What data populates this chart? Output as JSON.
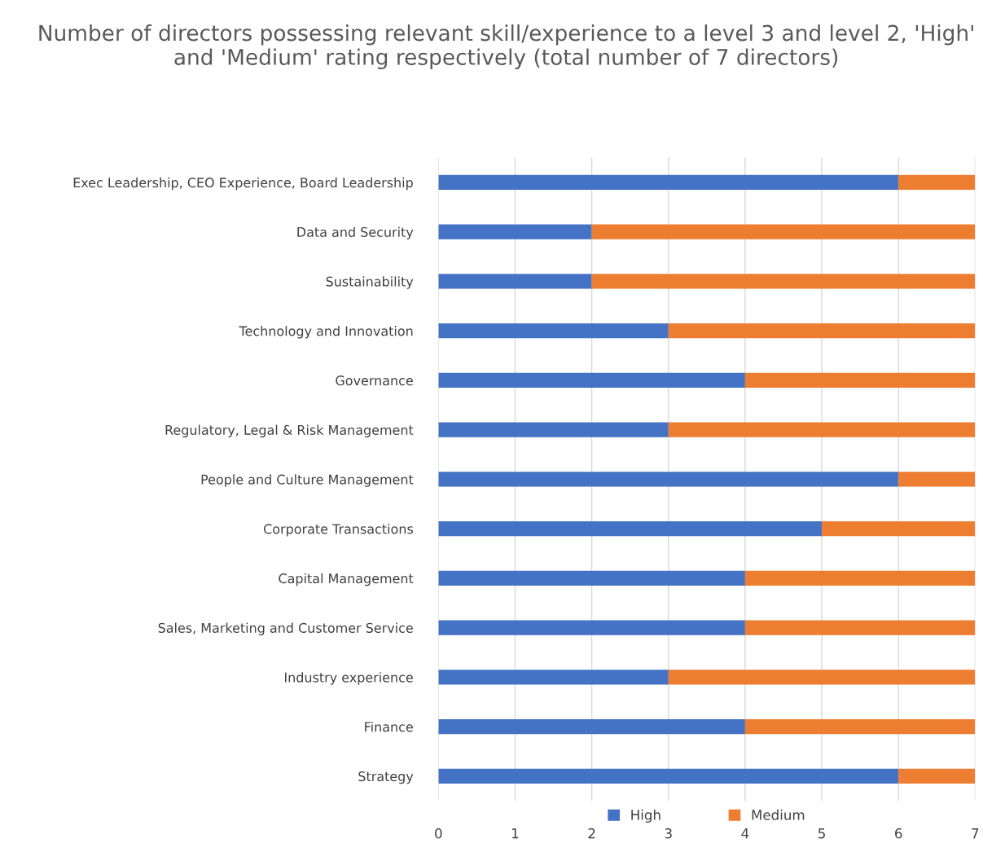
{
  "chart_data": {
    "type": "bar",
    "orientation": "horizontal",
    "stacked": true,
    "title": "Number of directors possessing relevant skill/experience to a level 3 and level 2, 'High' and 'Medium' rating respectively (total number of 7 directors)",
    "categories": [
      "Exec Leadership, CEO Experience, Board Leadership",
      "Data and Security",
      "Sustainability",
      "Technology and Innovation",
      "Governance",
      "Regulatory, Legal & Risk Management",
      "People and Culture Management",
      "Corporate Transactions",
      "Capital Management",
      "Sales, Marketing and Customer Service",
      "Industry experience",
      "Finance",
      "Strategy"
    ],
    "series": [
      {
        "name": "High",
        "color": "#4472c4",
        "values": [
          6,
          2,
          2,
          3,
          4,
          3,
          6,
          5,
          4,
          4,
          3,
          4,
          6
        ]
      },
      {
        "name": "Medium",
        "color": "#ed7d31",
        "values": [
          1,
          5,
          5,
          4,
          3,
          4,
          1,
          2,
          3,
          3,
          4,
          3,
          1
        ]
      }
    ],
    "xlim": [
      0,
      7
    ],
    "xticks": [
      0,
      1,
      2,
      3,
      4,
      5,
      6,
      7
    ],
    "grid": "x",
    "legend": "bottom"
  }
}
